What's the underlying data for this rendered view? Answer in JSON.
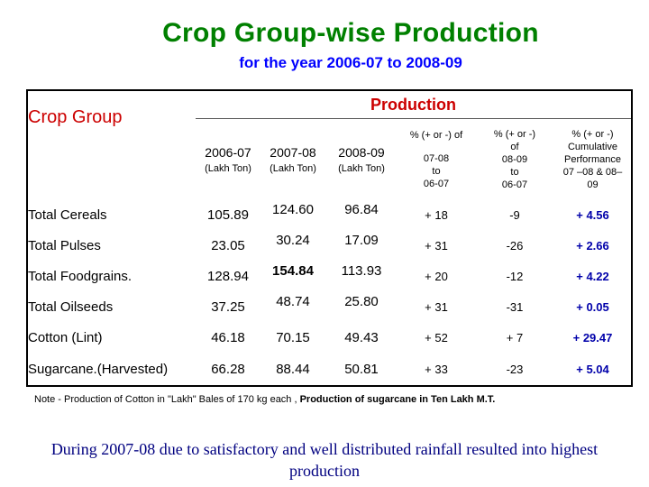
{
  "title": "Crop Group-wise Production",
  "subtitle": "for the year 2006-07 to 2008-09",
  "table": {
    "production_header": "Production",
    "crop_group_header": "Crop Group",
    "years": [
      "2006-07",
      "2007-08",
      "2008-09"
    ],
    "units": [
      "(Lakh Ton)",
      "(Lakh Ton)",
      "(Lakh Ton)"
    ],
    "pct_col1": {
      "line1": "% (+ or -) of",
      "line2": "07-08",
      "line3": "to",
      "line4": "06-07"
    },
    "pct_col2": {
      "line1": "% (+ or -)",
      "line2": "of",
      "line3": "08-09",
      "line4": "to",
      "line5": "06-07"
    },
    "pct_col3": {
      "line1": "% (+ or -)",
      "line2": "Cumulative",
      "line3": "Performance",
      "line4": "07 –08 & 08–",
      "line5": "09"
    },
    "rows": [
      {
        "name": "Total Cereals",
        "y1": "105.89",
        "y2": "124.60",
        "y3": "96.84",
        "p1": "+ 18",
        "p2": "-9",
        "p3": "+ 4.56"
      },
      {
        "name": "Total Pulses",
        "y1": "23.05",
        "y2": "30.24",
        "y3": "17.09",
        "p1": "+ 31",
        "p2": "-26",
        "p3": "+ 2.66"
      },
      {
        "name": "Total Foodgrains.",
        "y1": "128.94",
        "y2": "154.84",
        "y3": "113.93",
        "p1": "+ 20",
        "p2": "-12",
        "p3": "+ 4.22"
      },
      {
        "name": "Total Oilseeds",
        "y1": "37.25",
        "y2": "48.74",
        "y3": "25.80",
        "p1": "+ 31",
        "p2": "-31",
        "p3": "+ 0.05"
      },
      {
        "name": "Cotton (Lint)",
        "y1": "46.18",
        "y2": "70.15",
        "y3": "49.43",
        "p1": "+ 52",
        "p2": "+ 7",
        "p3": "+ 29.47"
      },
      {
        "name": "Sugarcane.(Harvested)",
        "y1": "66.28",
        "y2": "88.44",
        "y3": "50.81",
        "p1": "+ 33",
        "p2": "-23",
        "p3": "+ 5.04"
      }
    ]
  },
  "note": {
    "part1": "Note - Production of Cotton in \"Lakh\" Bales of 170 kg each , ",
    "part2": "Production of sugarcane in Ten Lakh M.T."
  },
  "conclusion": "During 2007-08 due to satisfactory and well distributed rainfall resulted into highest production",
  "colors": {
    "title": "#008000",
    "subtitle": "#0000ff",
    "header": "#cc0000",
    "cumulative": "#0000aa",
    "conclusion": "#000080"
  }
}
